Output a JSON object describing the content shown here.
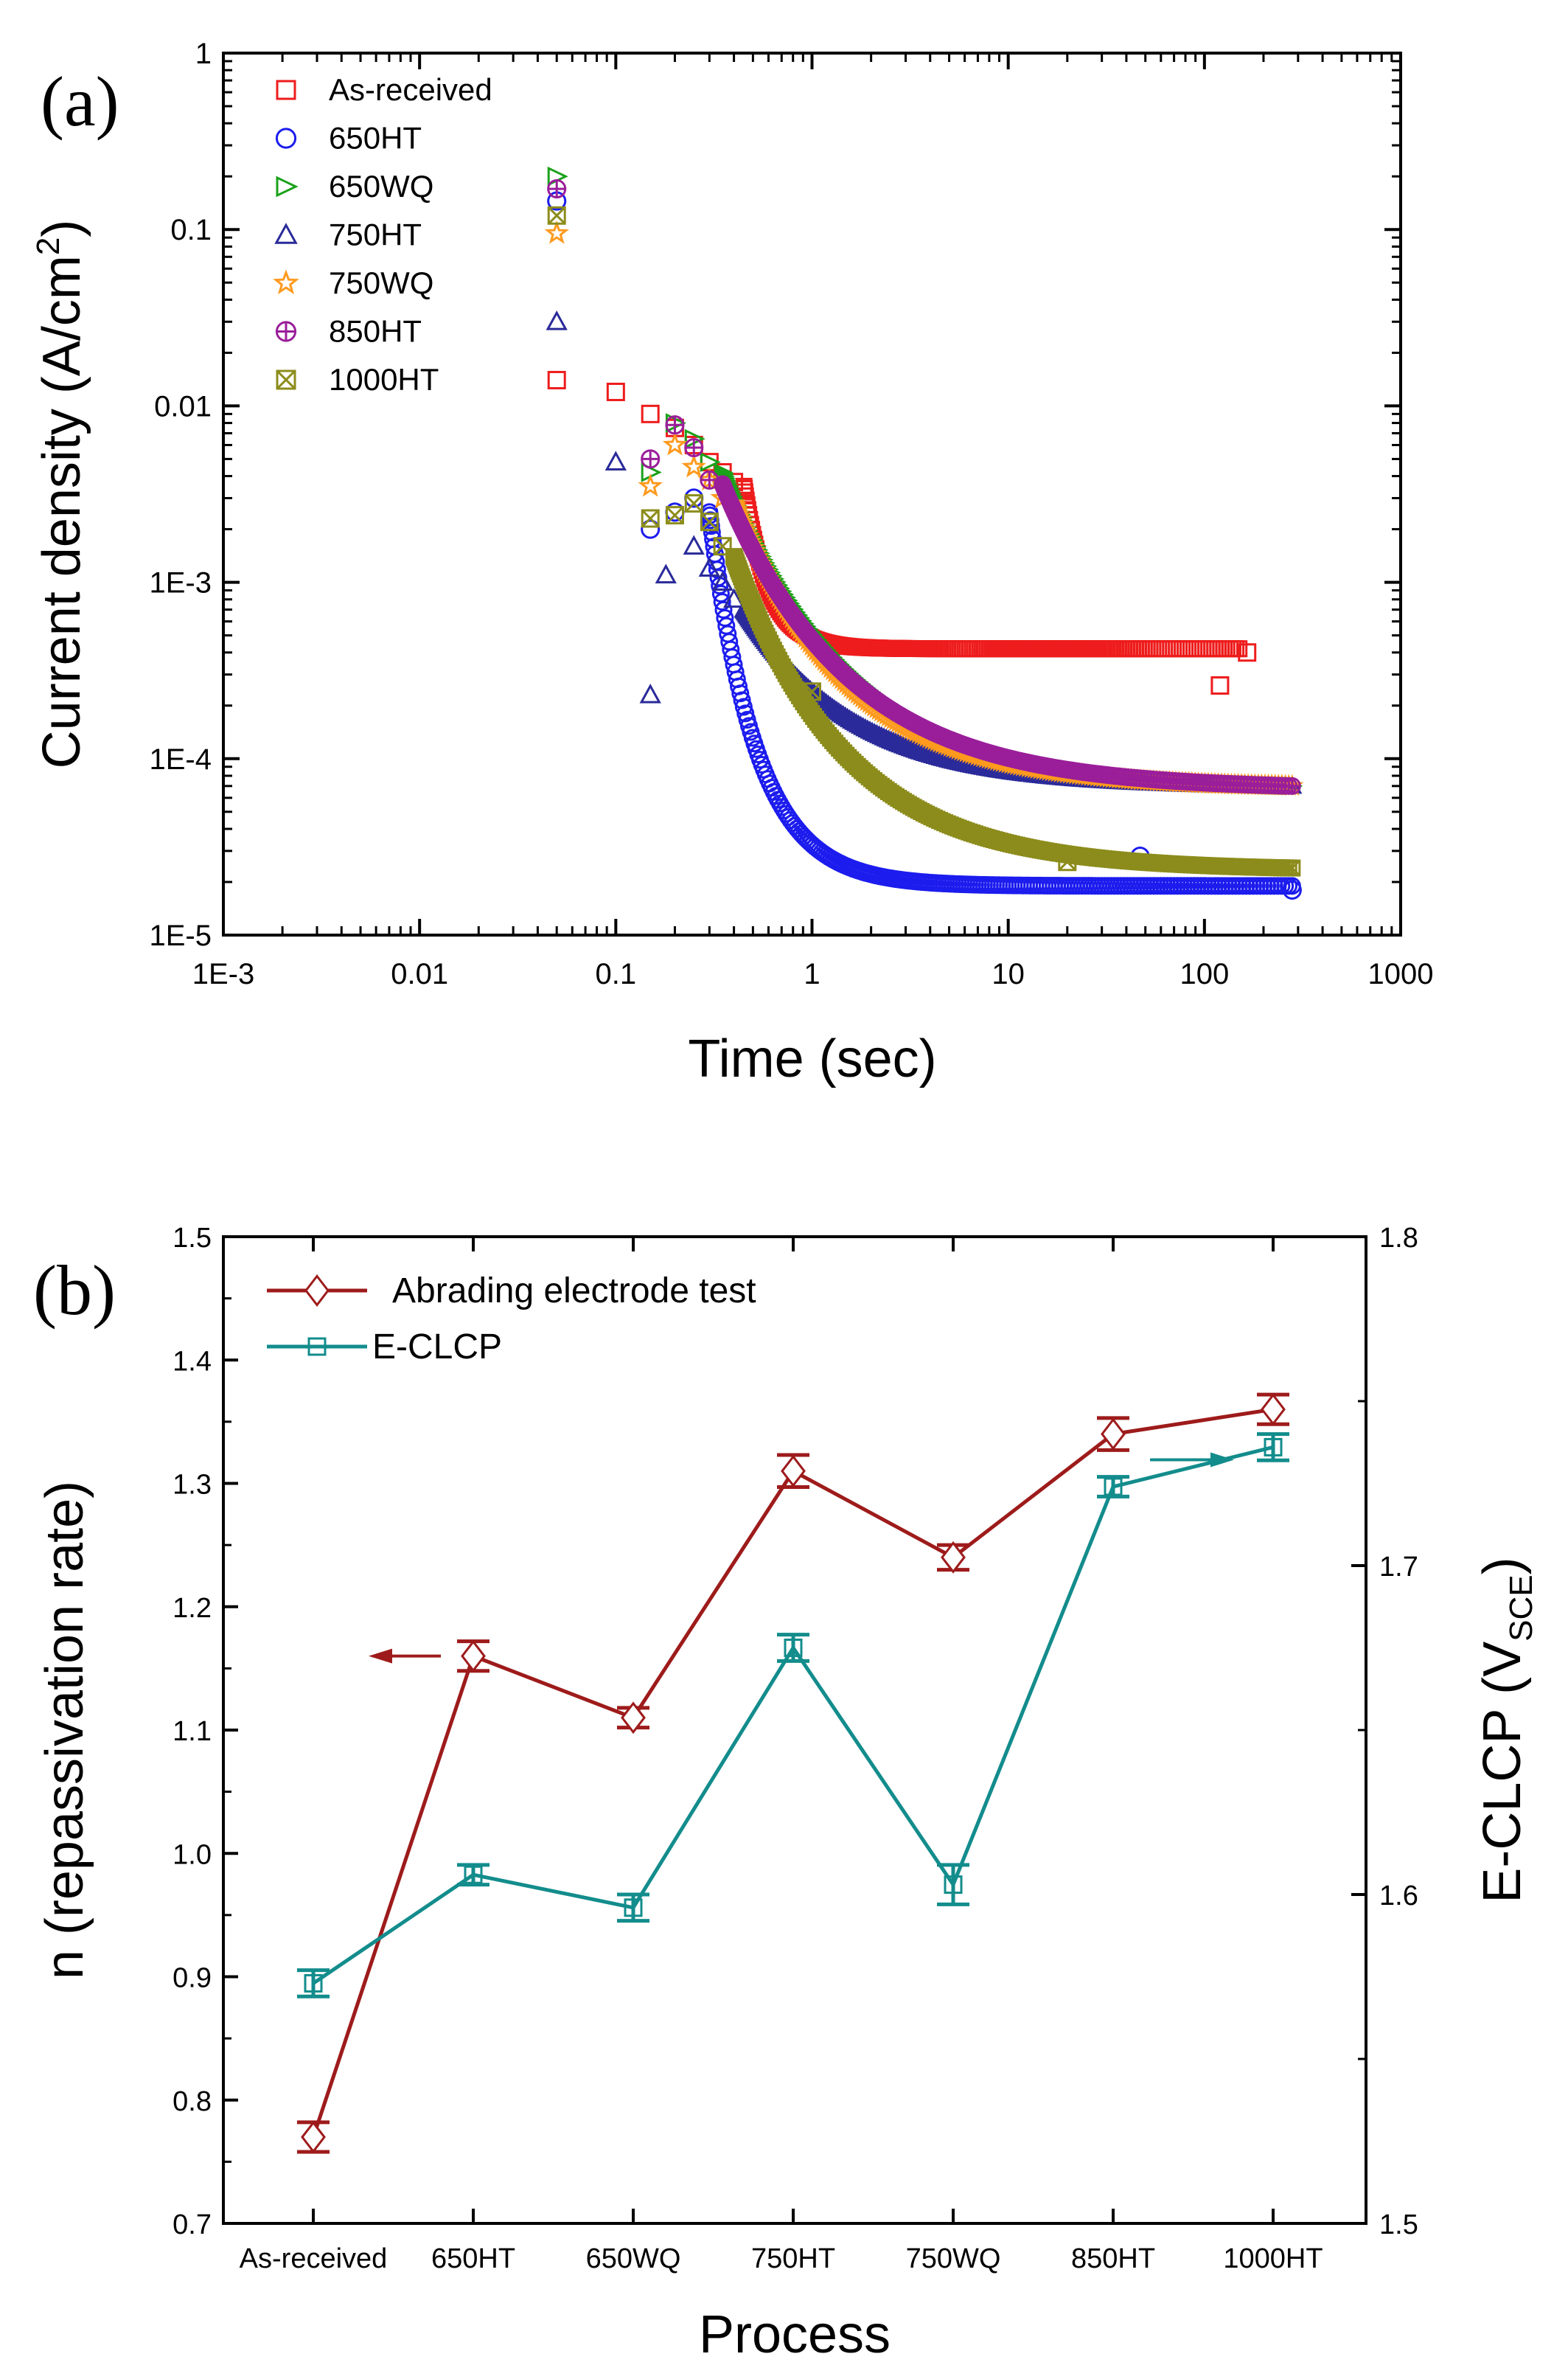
{
  "figure_a": {
    "panel_label": "(a)",
    "chart_data": {
      "type": "scatter",
      "xscale": "log",
      "yscale": "log",
      "xlabel": "Time (sec)",
      "ylabel_main": "Current density (A/cm",
      "ylabel_sup": "2",
      "ylabel_end": ")",
      "xlim": [
        0.001,
        1000
      ],
      "ylim": [
        1e-05,
        1
      ],
      "x_ticks": [
        0.001,
        0.01,
        0.1,
        1,
        10,
        100,
        1000
      ],
      "x_tick_labels": [
        "1E-3",
        "0.01",
        "0.1",
        "1",
        "10",
        "100",
        "1000"
      ],
      "y_ticks": [
        1e-05,
        0.0001,
        0.001,
        0.01,
        0.1,
        1
      ],
      "y_tick_labels": [
        "1E-5",
        "1E-4",
        "1E-3",
        "0.01",
        "0.1",
        "1"
      ],
      "legend_position": "top-left",
      "series": [
        {
          "name": "As-received",
          "marker": "square",
          "color": "#ee1c1c",
          "early": [
            [
              0.05,
              0.014
            ],
            [
              0.1,
              0.012
            ],
            [
              0.15,
              0.009
            ],
            [
              0.2,
              0.0075
            ],
            [
              0.25,
              0.006
            ],
            [
              0.3,
              0.0048
            ],
            [
              0.35,
              0.0042
            ],
            [
              0.4,
              0.0037
            ],
            [
              120,
              0.00026
            ],
            [
              165,
              0.0004
            ]
          ],
          "decay": {
            "t0": 0.45,
            "t1": 150,
            "y0": 0.0035,
            "y1": 0.00042,
            "bend": 0.05
          }
        },
        {
          "name": "650HT",
          "marker": "circle",
          "color": "#1c1cee",
          "early": [
            [
              0.05,
              0.145
            ],
            [
              0.15,
              0.002
            ],
            [
              0.2,
              0.0025
            ],
            [
              0.25,
              0.003
            ],
            [
              47,
              2.8e-05
            ],
            [
              280,
              1.8e-05
            ]
          ],
          "decay": {
            "t0": 0.3,
            "t1": 280,
            "y0": 0.0025,
            "y1": 1.9e-05,
            "bend": 0.08
          }
        },
        {
          "name": "650WQ",
          "marker": "triangle-right",
          "color": "#1aa11a",
          "early": [
            [
              0.05,
              0.2
            ],
            [
              0.15,
              0.0042
            ],
            [
              0.2,
              0.008
            ],
            [
              0.25,
              0.0065
            ],
            [
              0.3,
              0.0048
            ]
          ],
          "decay": {
            "t0": 0.35,
            "t1": 280,
            "y0": 0.0042,
            "y1": 7e-05,
            "bend": 0.22
          }
        },
        {
          "name": "750HT",
          "marker": "triangle-up",
          "color": "#2a2a9a",
          "early": [
            [
              0.05,
              0.03
            ],
            [
              0.1,
              0.0048
            ],
            [
              0.15,
              0.00023
            ],
            [
              0.18,
              0.0011
            ],
            [
              0.25,
              0.0016
            ],
            [
              0.3,
              0.0012
            ],
            [
              0.35,
              0.001
            ],
            [
              0.4,
              0.0008
            ],
            [
              1,
              0.00021
            ]
          ],
          "decay": {
            "t0": 0.45,
            "t1": 280,
            "y0": 0.0007,
            "y1": 7e-05,
            "bend": 0.2
          }
        },
        {
          "name": "750WQ",
          "marker": "star",
          "color": "#ff9a1e",
          "early": [
            [
              0.05,
              0.095
            ],
            [
              0.15,
              0.0035
            ],
            [
              0.2,
              0.006
            ],
            [
              0.25,
              0.0045
            ],
            [
              0.3,
              0.0038
            ],
            [
              0.35,
              0.003
            ]
          ],
          "decay": {
            "t0": 0.4,
            "t1": 280,
            "y0": 0.0028,
            "y1": 7e-05,
            "bend": 0.2
          }
        },
        {
          "name": "850HT",
          "marker": "circle-plus",
          "color": "#9a1e9a",
          "early": [
            [
              0.05,
              0.17
            ],
            [
              0.15,
              0.005
            ],
            [
              0.2,
              0.0078
            ],
            [
              0.25,
              0.0058
            ],
            [
              0.3,
              0.0038
            ]
          ],
          "decay": {
            "t0": 0.35,
            "t1": 280,
            "y0": 0.0036,
            "y1": 7e-05,
            "bend": 0.22
          }
        },
        {
          "name": "1000HT",
          "marker": "square-x",
          "color": "#8c8c1c",
          "early": [
            [
              0.05,
              0.12
            ],
            [
              0.15,
              0.0023
            ],
            [
              0.2,
              0.0024
            ],
            [
              0.25,
              0.0028
            ],
            [
              0.3,
              0.0022
            ],
            [
              0.35,
              0.0016
            ],
            [
              1,
              0.00024
            ],
            [
              20,
              2.6e-05
            ]
          ],
          "decay": {
            "t0": 0.4,
            "t1": 280,
            "y0": 0.0014,
            "y1": 2.4e-05,
            "bend": 0.2
          }
        }
      ]
    }
  },
  "figure_b": {
    "panel_label": "(b)",
    "chart_data": {
      "type": "line",
      "categories": [
        "As-received",
        "650HT",
        "650WQ",
        "750HT",
        "750WQ",
        "850HT",
        "1000HT"
      ],
      "xlabel": "Process",
      "ylabel_left": "n (repassivation rate)",
      "ylabel_right_main": "E-CLCP (V",
      "ylabel_right_sub": "SCE",
      "ylabel_right_end": ")",
      "ylim_left": [
        0.7,
        1.5
      ],
      "ylim_right": [
        1.5,
        1.8
      ],
      "y_ticks_left": [
        "0.7",
        "0.8",
        "0.9",
        "1.0",
        "1.1",
        "1.2",
        "1.3",
        "1.4",
        "1.5"
      ],
      "y_ticks_right": [
        "1.5",
        "1.6",
        "1.7",
        "1.8"
      ],
      "legend_position": "top-left",
      "series": [
        {
          "name": "Abrading electrode test",
          "axis": "left",
          "marker": "diamond",
          "color": "#9e1b1b",
          "values": [
            0.77,
            1.16,
            1.11,
            1.31,
            1.24,
            1.34,
            1.36
          ],
          "errors": [
            0.012,
            0.012,
            0.008,
            0.013,
            0.01,
            0.013,
            0.012
          ]
        },
        {
          "name": "E-CLCP",
          "axis": "right",
          "marker": "square",
          "color": "#138c8c",
          "values": [
            1.573,
            1.606,
            1.596,
            1.675,
            1.603,
            1.724,
            1.736
          ],
          "errors": [
            0.004,
            0.003,
            0.004,
            0.004,
            0.006,
            0.003,
            0.004
          ]
        }
      ],
      "arrows": [
        {
          "points_to": "left",
          "color": "#9e1b1b"
        },
        {
          "points_to": "right",
          "color": "#138c8c"
        }
      ]
    }
  }
}
